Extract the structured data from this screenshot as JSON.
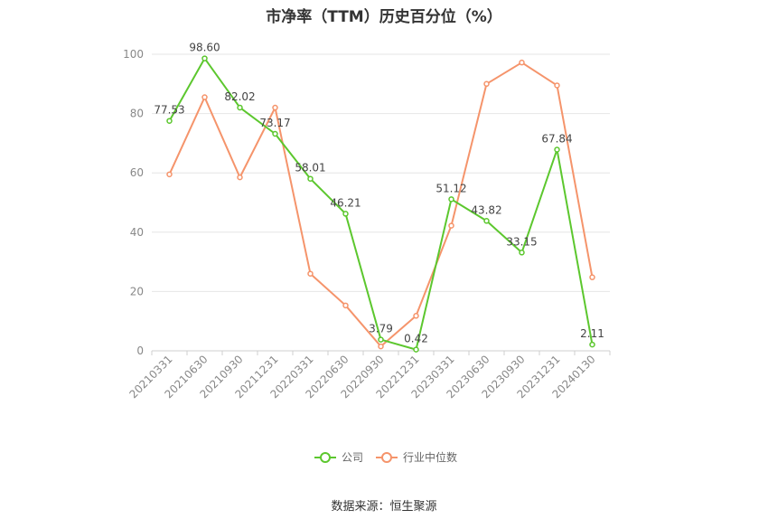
{
  "chart_data": {
    "type": "line",
    "title": "市净率（TTM）历史百分位（%）",
    "categories": [
      "20210331",
      "20210630",
      "20210930",
      "20211231",
      "20220331",
      "20220630",
      "20220930",
      "20221231",
      "20230331",
      "20230630",
      "20230930",
      "20231231",
      "20240130"
    ],
    "ylim": [
      0,
      100
    ],
    "yticks": [
      0,
      20,
      40,
      60,
      80,
      100
    ],
    "grid": true,
    "legend_position": "bottom-center",
    "series": [
      {
        "name": "公司",
        "color": "#5cc72e",
        "values": [
          77.53,
          98.6,
          82.02,
          73.17,
          58.01,
          46.21,
          3.79,
          0.42,
          51.12,
          43.82,
          33.15,
          67.84,
          2.11
        ],
        "labels": [
          "77.53",
          "98.60",
          "82.02",
          "73.17",
          "58.01",
          "46.21",
          "3.79",
          "0.42",
          "51.12",
          "43.82",
          "33.15",
          "67.84",
          "2.11"
        ]
      },
      {
        "name": "行业中位数",
        "color": "#f5946b",
        "values": [
          59.5,
          85.5,
          58.5,
          82.0,
          26.0,
          15.3,
          1.5,
          11.8,
          42.2,
          90.0,
          97.2,
          89.5,
          24.8
        ]
      }
    ]
  },
  "footer": {
    "source": "数据来源：恒生聚源"
  }
}
